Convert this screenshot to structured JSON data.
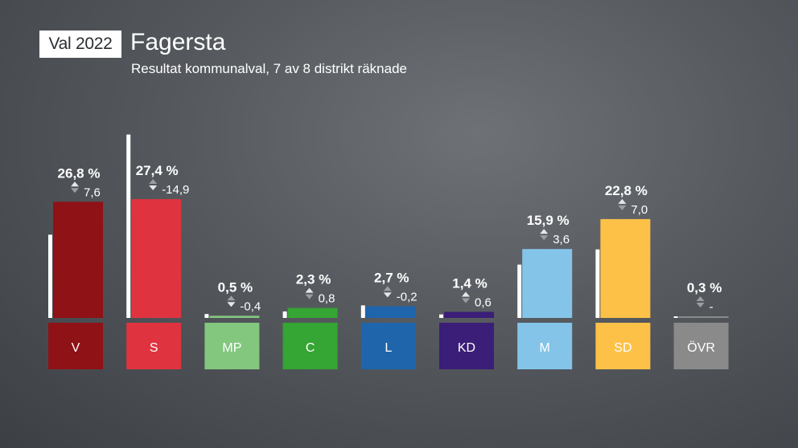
{
  "header": {
    "badge": "Val 2022",
    "title": "Fagersta",
    "subtitle": "Resultat kommunalval, 7 av 8 distrikt räknade"
  },
  "chart_data": {
    "type": "bar",
    "categories": [
      "V",
      "S",
      "MP",
      "C",
      "L",
      "KD",
      "M",
      "SD",
      "ÖVR"
    ],
    "series": [
      {
        "values": [
          26.8,
          27.4,
          0.5,
          2.3,
          2.7,
          1.4,
          15.9,
          22.8,
          0.3
        ]
      }
    ],
    "previous_values": [
      19.2,
      42.3,
      0.9,
      1.5,
      2.9,
      0.8,
      12.3,
      15.8,
      0.3
    ],
    "labels": [
      "26,8 %",
      "27,4 %",
      "0,5 %",
      "2,3 %",
      "2,7 %",
      "1,4 %",
      "15,9 %",
      "22,8 %",
      "0,3 %"
    ],
    "changes": [
      "7,6",
      "-14,9",
      "-0,4",
      "0,8",
      "-0,2",
      "0,6",
      "3,6",
      "7,0",
      "-"
    ],
    "change_direction": [
      "up",
      "down",
      "down",
      "up",
      "down",
      "up",
      "up",
      "up",
      "none"
    ],
    "colors": [
      "#8f1216",
      "#e03340",
      "#83c77f",
      "#35a534",
      "#1f65ab",
      "#3a1e78",
      "#84c4e8",
      "#fec148",
      "#8a8a8a"
    ],
    "ylim": [
      0,
      45
    ],
    "grid": false,
    "legend": "none"
  }
}
